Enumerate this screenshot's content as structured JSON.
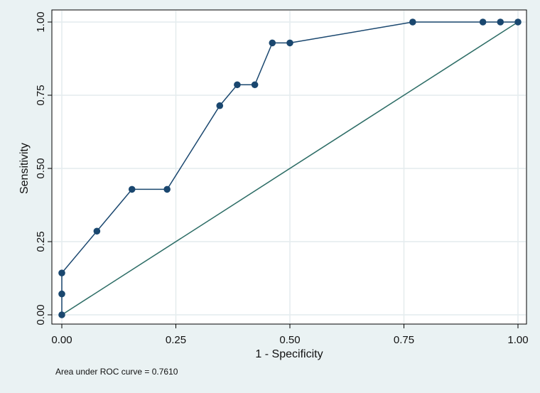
{
  "chart_data": {
    "type": "line",
    "xlabel": "1 - Specificity",
    "ylabel": "Sensitivity",
    "xlim": [
      0,
      1
    ],
    "ylim": [
      0,
      1
    ],
    "x_ticks": [
      "0.00",
      "0.25",
      "0.50",
      "0.75",
      "1.00"
    ],
    "y_ticks": [
      "0.00",
      "0.25",
      "0.50",
      "0.75",
      "1.00"
    ],
    "grid": true,
    "note": "Area under ROC curve = 0.7610",
    "series": [
      {
        "style": "line-with-markers",
        "color": "#1a476f",
        "x": [
          0,
          0,
          0,
          0.0769,
          0.1538,
          0.2308,
          0.3462,
          0.3846,
          0.4231,
          0.4615,
          0.5,
          0.7692,
          0.9231,
          0.9615,
          1.0
        ],
        "y": [
          0,
          0.0714,
          0.1429,
          0.2857,
          0.4286,
          0.4286,
          0.7143,
          0.7857,
          0.7857,
          0.9286,
          0.9286,
          1.0,
          1.0,
          1.0,
          1.0
        ]
      },
      {
        "style": "reference-line",
        "color": "#2d6d66",
        "x": [
          0,
          1
        ],
        "y": [
          0,
          1
        ]
      }
    ]
  }
}
